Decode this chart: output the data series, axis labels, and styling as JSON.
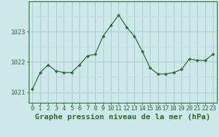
{
  "hours": [
    0,
    1,
    2,
    3,
    4,
    5,
    6,
    7,
    8,
    9,
    10,
    11,
    12,
    13,
    14,
    15,
    16,
    17,
    18,
    19,
    20,
    21,
    22,
    23
  ],
  "pressure": [
    1021.1,
    1021.65,
    1021.9,
    1021.7,
    1021.65,
    1021.65,
    1021.9,
    1022.2,
    1022.25,
    1022.85,
    1023.2,
    1023.55,
    1023.15,
    1022.85,
    1022.35,
    1021.8,
    1021.6,
    1021.6,
    1021.65,
    1021.75,
    1022.1,
    1022.05,
    1022.05,
    1022.25
  ],
  "line_color": "#2d6a2d",
  "marker_color": "#2d6a2d",
  "bg_color": "#cce8e8",
  "grid_color_major": "#aacccc",
  "grid_color_minor": "#c4e0e0",
  "axes_color": "#2d6a2d",
  "title": "Graphe pression niveau de la mer (hPa)",
  "yticks": [
    1021,
    1022,
    1023
  ],
  "ylim": [
    1020.65,
    1024.0
  ],
  "xlim": [
    -0.5,
    23.5
  ],
  "title_fontsize": 8.0,
  "tick_fontsize": 6.5
}
